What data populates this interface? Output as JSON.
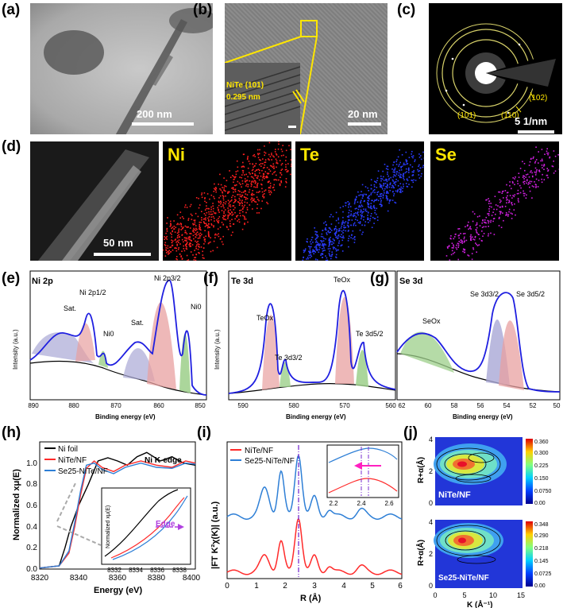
{
  "panel_labels": {
    "a": "(a)",
    "b": "(b)",
    "c": "(c)",
    "d": "(d)",
    "e": "(e)",
    "f": "(f)",
    "g": "(g)",
    "h": "(h)",
    "i": "(i)",
    "j": "(j)"
  },
  "tem": {
    "a_scale": "200 nm",
    "b_scale": "20 nm",
    "b_lattice": "NiTe (101)",
    "b_spacing": "0.295 nm",
    "c_scale": "5 1/nm",
    "c_rings": [
      "(101)",
      "(110)",
      "(102)"
    ]
  },
  "mapping": {
    "scale": "50 nm",
    "elements": [
      "Ni",
      "Te",
      "Se"
    ],
    "colors": [
      "#ff2020",
      "#2a3cff",
      "#d020e0"
    ]
  },
  "xps": {
    "ylabel": "Intensity (a.u.)",
    "xlabel": "Binding energy (eV)",
    "ni": {
      "title": "Ni 2p",
      "ticks": [
        "890",
        "880",
        "870",
        "860",
        "850"
      ],
      "labels": [
        "Sat.",
        "Ni 2p1/2",
        "Ni0",
        "Sat.",
        "Ni 2p3/2",
        "Ni0"
      ]
    },
    "te": {
      "title": "Te 3d",
      "ticks": [
        "590",
        "580",
        "570",
        "560"
      ],
      "labels": [
        "TeOx",
        "Te 3d3/2",
        "TeOx",
        "Te 3d5/2"
      ]
    },
    "se": {
      "title": "Se 3d",
      "ticks": [
        "62",
        "60",
        "58",
        "56",
        "54",
        "52",
        "50"
      ],
      "labels": [
        "SeOx",
        "Se 3d3/2",
        "Se 3d5/2"
      ]
    }
  },
  "chart_data": [
    {
      "type": "line",
      "title": "Ni K-edge",
      "xlabel": "Energy (eV)",
      "ylabel": "Normalized xμ(E)",
      "x_ticks": [
        "8320",
        "8340",
        "8360",
        "8380",
        "8400"
      ],
      "y_ticks": [
        "0.0",
        "0.2",
        "0.4",
        "0.6",
        "0.8",
        "1.0"
      ],
      "xlim": [
        8320,
        8400
      ],
      "ylim": [
        0,
        1.2
      ],
      "series": [
        {
          "name": "Ni foil",
          "color": "#000000"
        },
        {
          "name": "NiTe/NF",
          "color": "#ff2a2a"
        },
        {
          "name": "Se25-NiTe/NF",
          "color": "#2e7fd6"
        }
      ],
      "inset": {
        "xlabel": "",
        "ylabel": "Normalized xμ(E)",
        "x_ticks": [
          "8332",
          "8334",
          "8336",
          "8338"
        ],
        "annotation": "Edge"
      }
    },
    {
      "type": "line",
      "xlabel": "R (Å)",
      "ylabel": "|FT K²χ(K)| (a.u.)",
      "x_ticks": [
        "0",
        "1",
        "2",
        "3",
        "4",
        "5",
        "6"
      ],
      "xlim": [
        0,
        6
      ],
      "series": [
        {
          "name": "NiTe/NF",
          "color": "#ff2a2a"
        },
        {
          "name": "Se25-NiTe/NF",
          "color": "#2e7fd6"
        }
      ],
      "inset": {
        "x_ticks": [
          "2.2",
          "2.4",
          "2.6"
        ]
      }
    },
    {
      "type": "heatmap",
      "xlabel": "K (Å⁻¹)",
      "ylabel": "R+α(Å)",
      "panels": [
        {
          "name": "NiTe/NF",
          "colorbar": [
            "0.360",
            "0.300",
            "0.225",
            "0.150",
            "0.0750",
            "0.00"
          ]
        },
        {
          "name": "Se25-NiTe/NF",
          "colorbar": [
            "0.348",
            "0.290",
            "0.218",
            "0.145",
            "0.0725",
            "0.00"
          ]
        }
      ],
      "x_ticks": [
        "0",
        "5",
        "10",
        "15"
      ],
      "y_ticks": [
        "0",
        "2",
        "4"
      ]
    }
  ]
}
